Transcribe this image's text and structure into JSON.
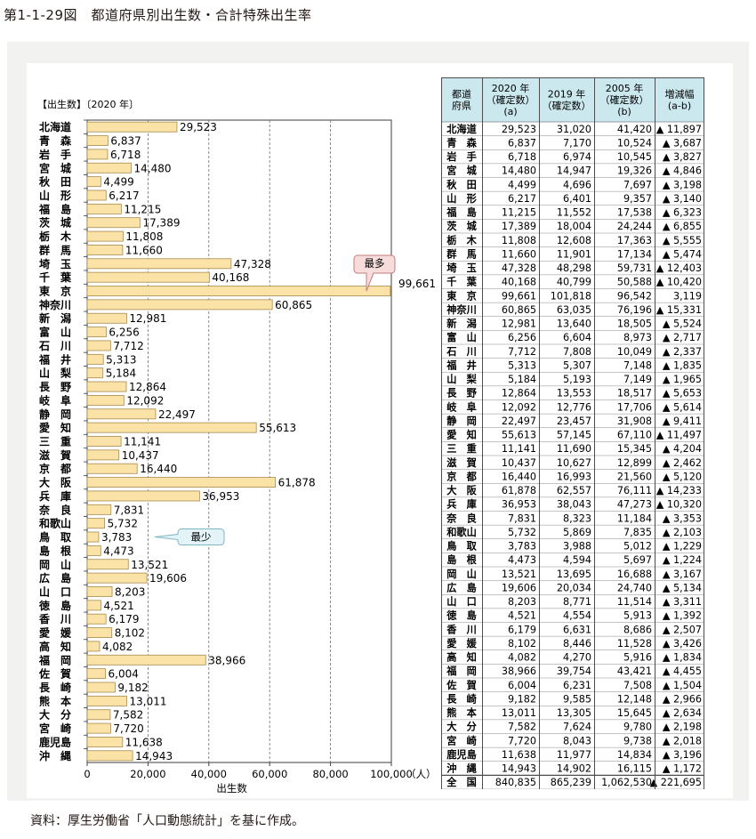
{
  "figure_title": "第1-1-29図　都道府県別出生数・合計特殊出生率",
  "source_note": "資料：厚生労働省「人口動態統計」を基に作成。",
  "colors": {
    "bar_fill": "#fbe3a7",
    "bar_stroke": "#a88a4e",
    "table_header": "#cbe8ee",
    "panel": "#f2f2f0",
    "callout": "#e3f3f8",
    "callout_stroke": "#7fb6c8"
  },
  "chart_data": {
    "type": "bar",
    "orientation": "horizontal",
    "title": "【出生数】〔2020 年〕",
    "xlabel": "出生数",
    "xunit": "（人）",
    "xlim": [
      0,
      100000
    ],
    "xticks": [
      0,
      20000,
      40000,
      60000,
      80000,
      100000
    ],
    "xtick_labels": [
      "0",
      "20,000",
      "40,000",
      "60,000",
      "80,000",
      "100,000"
    ],
    "categories": [
      "北海道",
      "青　森",
      "岩　手",
      "宮　城",
      "秋　田",
      "山　形",
      "福　島",
      "茨　城",
      "栃　木",
      "群　馬",
      "埼　玉",
      "千　葉",
      "東　京",
      "神奈川",
      "新　潟",
      "富　山",
      "石　川",
      "福　井",
      "山　梨",
      "長　野",
      "岐　阜",
      "静　岡",
      "愛　知",
      "三　重",
      "滋　賀",
      "京　都",
      "大　阪",
      "兵　庫",
      "奈　良",
      "和歌山",
      "鳥　取",
      "島　根",
      "岡　山",
      "広　島",
      "山　口",
      "徳　島",
      "香　川",
      "愛　媛",
      "高　知",
      "福　岡",
      "佐　賀",
      "長　崎",
      "熊　本",
      "大　分",
      "宮　崎",
      "鹿児島",
      "沖　縄"
    ],
    "values": [
      29523,
      6837,
      6718,
      14480,
      4499,
      6217,
      11215,
      17389,
      11808,
      11660,
      47328,
      40168,
      99661,
      60865,
      12981,
      6256,
      7712,
      5313,
      5184,
      12864,
      12092,
      22497,
      55613,
      11141,
      10437,
      16440,
      61878,
      36953,
      7831,
      5732,
      3783,
      4473,
      13521,
      19606,
      8203,
      4521,
      6179,
      8102,
      4082,
      38966,
      6004,
      9182,
      13011,
      7582,
      7720,
      11638,
      14943
    ],
    "value_labels": [
      "29,523",
      "6,837",
      "6,718",
      "14,480",
      "4,499",
      "6,217",
      "11,215",
      "17,389",
      "11,808",
      "11,660",
      "47,328",
      "40,168",
      "99,661",
      "60,865",
      "12,981",
      "6,256",
      "7,712",
      "5,313",
      "5,184",
      "12,864",
      "12,092",
      "22,497",
      "55,613",
      "11,141",
      "10,437",
      "16,440",
      "61,878",
      "36,953",
      "7,831",
      "5,732",
      "3,783",
      "4,473",
      "13,521",
      "19,606",
      "8,203",
      "4,521",
      "6,179",
      "8,102",
      "4,082",
      "38,966",
      "6,004",
      "9,182",
      "13,011",
      "7,582",
      "7,720",
      "11,638",
      "14,943"
    ],
    "annotations": [
      {
        "text": "最多",
        "category_index": 12
      },
      {
        "text": "最少",
        "category_index": 30
      }
    ],
    "grid": true
  },
  "table": {
    "headers": [
      [
        "都道",
        "府県"
      ],
      [
        "2020 年",
        "（確定数）",
        "(a)"
      ],
      [
        "2019 年",
        "（確定数）"
      ],
      [
        "2005 年",
        "（確定数）",
        "(b)"
      ],
      [
        "増減幅",
        "(a-b)"
      ]
    ],
    "rows": [
      [
        "北海道",
        "29,523",
        "31,020",
        "41,420",
        "▲ 11,897"
      ],
      [
        "青　森",
        "6,837",
        "7,170",
        "10,524",
        "▲ 3,687"
      ],
      [
        "岩　手",
        "6,718",
        "6,974",
        "10,545",
        "▲ 3,827"
      ],
      [
        "宮　城",
        "14,480",
        "14,947",
        "19,326",
        "▲ 4,846"
      ],
      [
        "秋　田",
        "4,499",
        "4,696",
        "7,697",
        "▲ 3,198"
      ],
      [
        "山　形",
        "6,217",
        "6,401",
        "9,357",
        "▲ 3,140"
      ],
      [
        "福　島",
        "11,215",
        "11,552",
        "17,538",
        "▲ 6,323"
      ],
      [
        "茨　城",
        "17,389",
        "18,004",
        "24,244",
        "▲ 6,855"
      ],
      [
        "栃　木",
        "11,808",
        "12,608",
        "17,363",
        "▲ 5,555"
      ],
      [
        "群　馬",
        "11,660",
        "11,901",
        "17,134",
        "▲ 5,474"
      ],
      [
        "埼　玉",
        "47,328",
        "48,298",
        "59,731",
        "▲ 12,403"
      ],
      [
        "千　葉",
        "40,168",
        "40,799",
        "50,588",
        "▲ 10,420"
      ],
      [
        "東　京",
        "99,661",
        "101,818",
        "96,542",
        "3,119"
      ],
      [
        "神奈川",
        "60,865",
        "63,035",
        "76,196",
        "▲ 15,331"
      ],
      [
        "新　潟",
        "12,981",
        "13,640",
        "18,505",
        "▲ 5,524"
      ],
      [
        "富　山",
        "6,256",
        "6,604",
        "8,973",
        "▲ 2,717"
      ],
      [
        "石　川",
        "7,712",
        "7,808",
        "10,049",
        "▲ 2,337"
      ],
      [
        "福　井",
        "5,313",
        "5,307",
        "7,148",
        "▲ 1,835"
      ],
      [
        "山　梨",
        "5,184",
        "5,193",
        "7,149",
        "▲ 1,965"
      ],
      [
        "長　野",
        "12,864",
        "13,553",
        "18,517",
        "▲ 5,653"
      ],
      [
        "岐　阜",
        "12,092",
        "12,776",
        "17,706",
        "▲ 5,614"
      ],
      [
        "静　岡",
        "22,497",
        "23,457",
        "31,908",
        "▲ 9,411"
      ],
      [
        "愛　知",
        "55,613",
        "57,145",
        "67,110",
        "▲ 11,497"
      ],
      [
        "三　重",
        "11,141",
        "11,690",
        "15,345",
        "▲ 4,204"
      ],
      [
        "滋　賀",
        "10,437",
        "10,627",
        "12,899",
        "▲ 2,462"
      ],
      [
        "京　都",
        "16,440",
        "16,993",
        "21,560",
        "▲ 5,120"
      ],
      [
        "大　阪",
        "61,878",
        "62,557",
        "76,111",
        "▲ 14,233"
      ],
      [
        "兵　庫",
        "36,953",
        "38,043",
        "47,273",
        "▲ 10,320"
      ],
      [
        "奈　良",
        "7,831",
        "8,323",
        "11,184",
        "▲ 3,353"
      ],
      [
        "和歌山",
        "5,732",
        "5,869",
        "7,835",
        "▲ 2,103"
      ],
      [
        "鳥　取",
        "3,783",
        "3,988",
        "5,012",
        "▲ 1,229"
      ],
      [
        "島　根",
        "4,473",
        "4,594",
        "5,697",
        "▲ 1,224"
      ],
      [
        "岡　山",
        "13,521",
        "13,695",
        "16,688",
        "▲ 3,167"
      ],
      [
        "広　島",
        "19,606",
        "20,034",
        "24,740",
        "▲ 5,134"
      ],
      [
        "山　口",
        "8,203",
        "8,771",
        "11,514",
        "▲ 3,311"
      ],
      [
        "徳　島",
        "4,521",
        "4,554",
        "5,913",
        "▲ 1,392"
      ],
      [
        "香　川",
        "6,179",
        "6,631",
        "8,686",
        "▲ 2,507"
      ],
      [
        "愛　媛",
        "8,102",
        "8,446",
        "11,528",
        "▲ 3,426"
      ],
      [
        "高　知",
        "4,082",
        "4,270",
        "5,916",
        "▲ 1,834"
      ],
      [
        "福　岡",
        "38,966",
        "39,754",
        "43,421",
        "▲ 4,455"
      ],
      [
        "佐　賀",
        "6,004",
        "6,231",
        "7,508",
        "▲ 1,504"
      ],
      [
        "長　崎",
        "9,182",
        "9,585",
        "12,148",
        "▲ 2,966"
      ],
      [
        "熊　本",
        "13,011",
        "13,305",
        "15,645",
        "▲ 2,634"
      ],
      [
        "大　分",
        "7,582",
        "7,624",
        "9,780",
        "▲ 2,198"
      ],
      [
        "宮　崎",
        "7,720",
        "8,043",
        "9,738",
        "▲ 2,018"
      ],
      [
        "鹿児島",
        "11,638",
        "11,977",
        "14,834",
        "▲ 3,196"
      ],
      [
        "沖　縄",
        "14,943",
        "14,902",
        "16,115",
        "▲ 1,172"
      ],
      [
        "全　国",
        "840,835",
        "865,239",
        "1,062,530",
        "▲ 221,695"
      ]
    ]
  }
}
